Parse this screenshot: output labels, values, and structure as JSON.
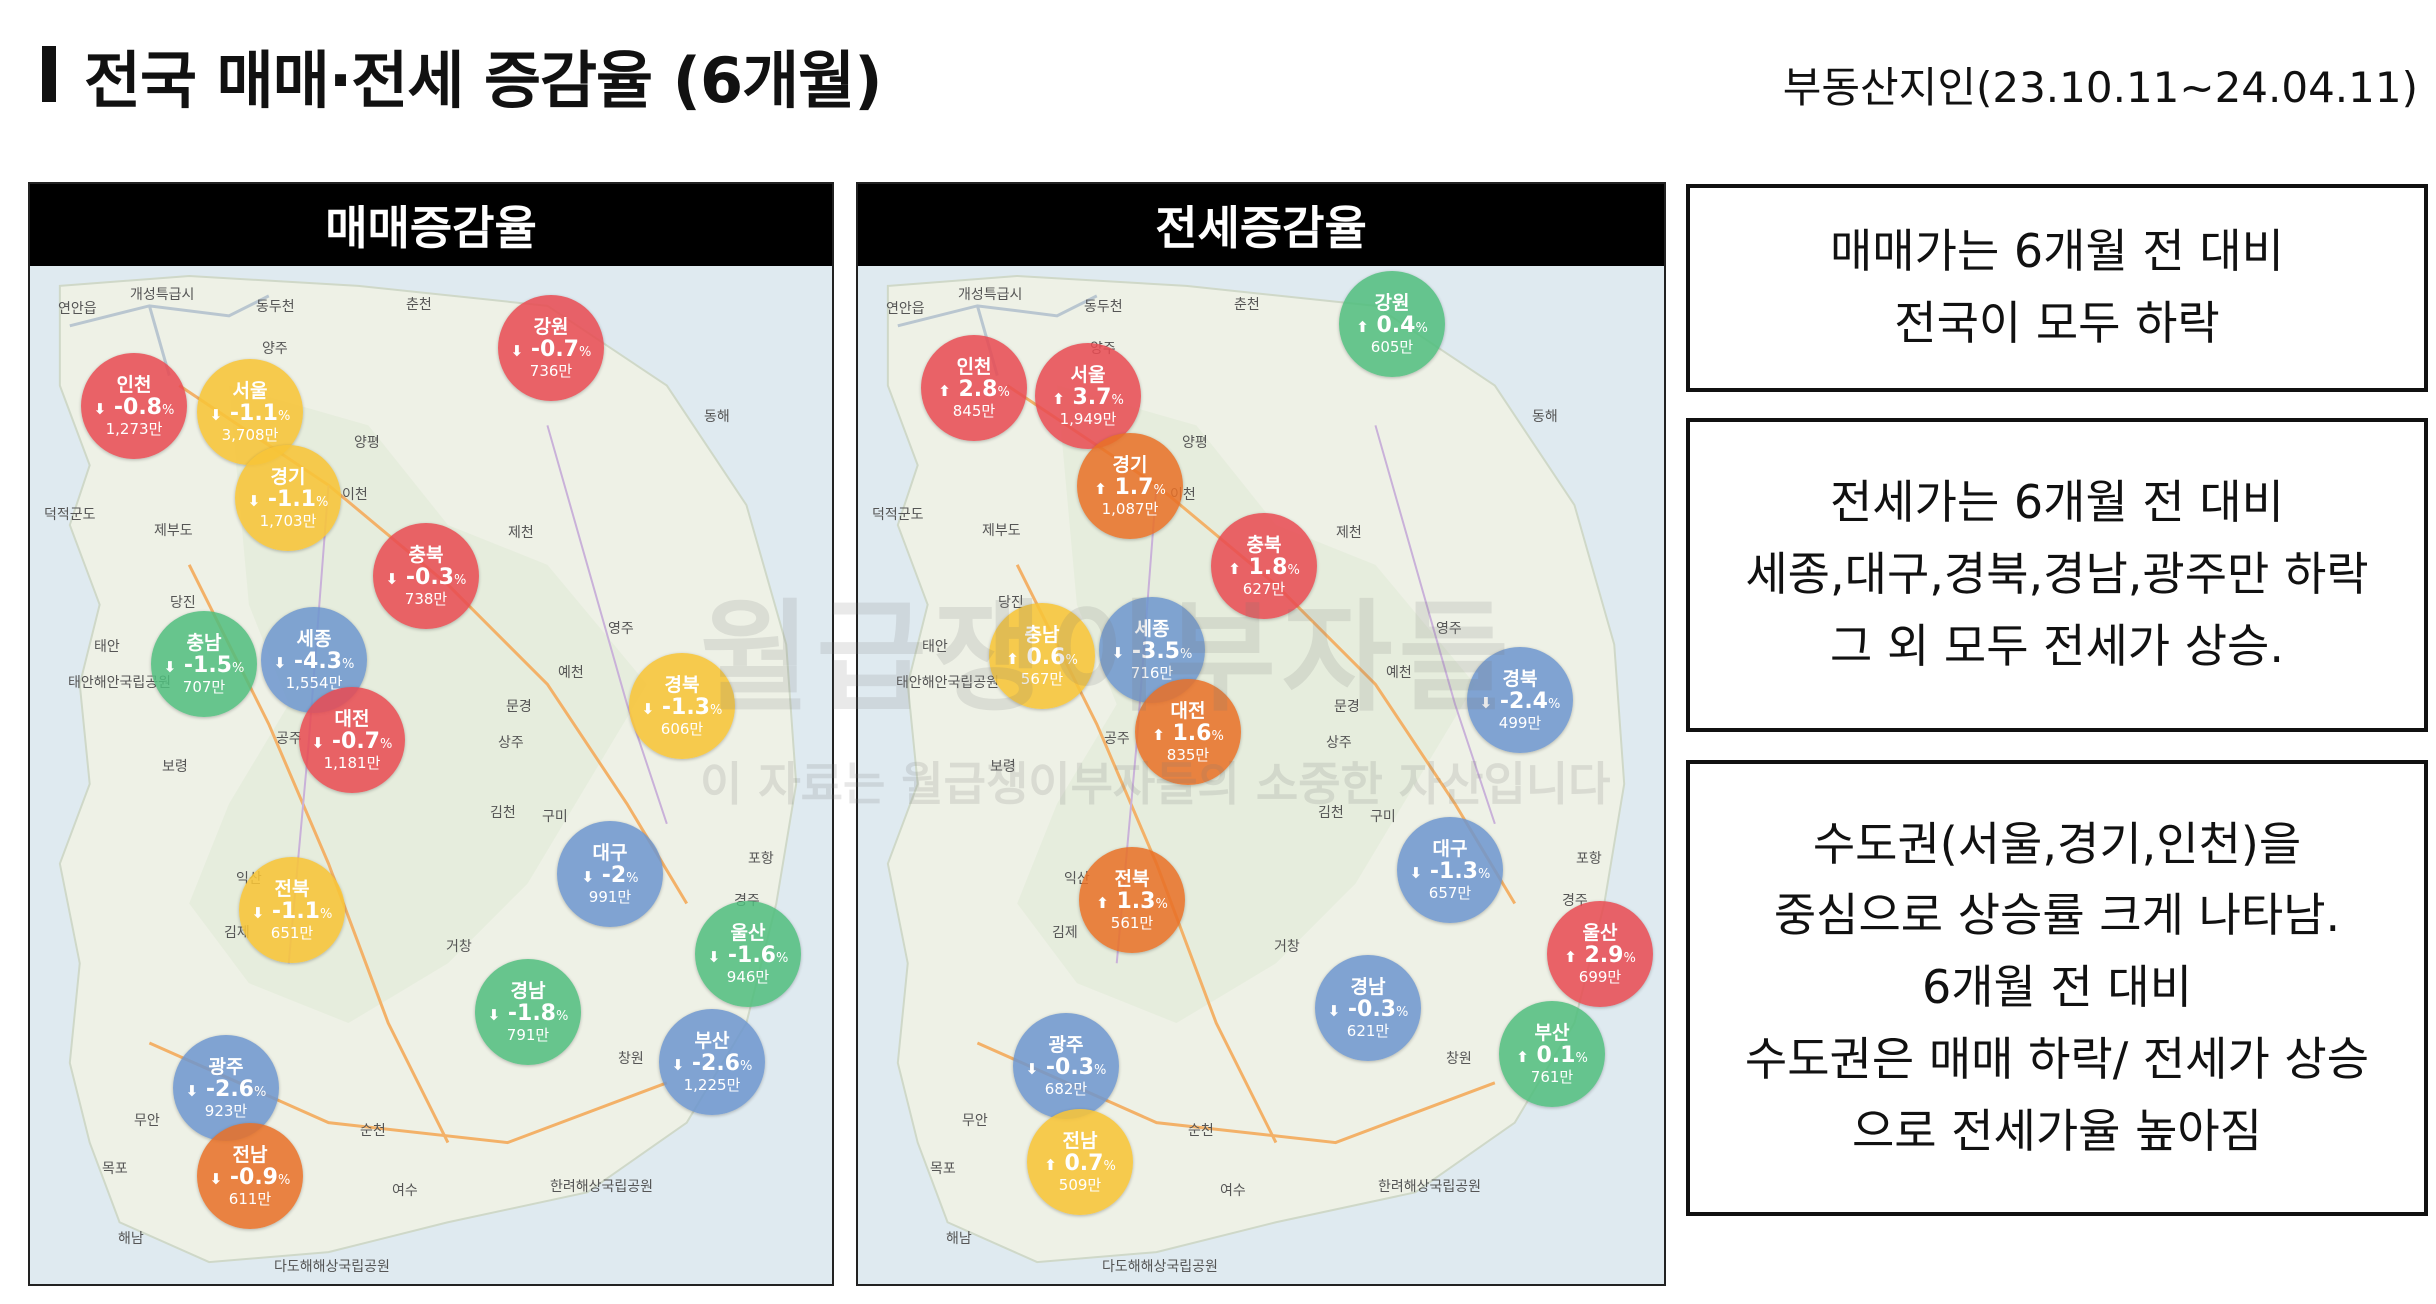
{
  "header": {
    "title": "전국 매매·전세 증감율 (6개월)",
    "source": "부동산지인(23.10.11~24.04.11)"
  },
  "colors": {
    "red": "#e84a52",
    "orange": "#e87026",
    "yellow": "#f7c438",
    "blue": "#6e96ce",
    "green": "#50be7e"
  },
  "place_names": {
    "yeonan": "연안읍",
    "kaesong": "개성특급시",
    "dongducheon": "동두천",
    "chuncheon": "춘천",
    "yangju": "양주",
    "donghae": "동해",
    "yangpyeong": "양평",
    "icheon": "이천",
    "deokjeok": "덕적군도",
    "jebu": "제부도",
    "jecheon": "제천",
    "dangjin": "당진",
    "taean": "태안",
    "taean_park": "태안해안국립공원",
    "yeongju": "영주",
    "yecheon": "예천",
    "mungyeong": "문경",
    "gongju": "공주",
    "sangju": "상주",
    "boryeong": "보령",
    "gimcheon": "김천",
    "gumi": "구미",
    "pohang": "포항",
    "iksan": "익산",
    "gimje": "김제",
    "gyeongju": "경주",
    "geochang": "거창",
    "changwon": "창원",
    "muan": "무안",
    "suncheon": "순천",
    "mokpo": "목포",
    "yeosu": "여수",
    "haenam": "해남",
    "hallyeo": "한려해상국립공원",
    "dadohae": "다도해해상국립공원",
    "ulsan_label": "울산"
  },
  "watermark": {
    "main": "월급쟁이부자들",
    "sub": "이 자료는 월급쟁이부자들의 소중한 자산입니다"
  },
  "panels": {
    "sale": {
      "header": "매매증감율",
      "regions": [
        {
          "name": "강원",
          "arrow": "⬇",
          "rate": "-0.7",
          "pct": "%",
          "price": "736만",
          "color": "red"
        },
        {
          "name": "인천",
          "arrow": "⬇",
          "rate": "-0.8",
          "pct": "%",
          "price": "1,273만",
          "color": "red"
        },
        {
          "name": "서울",
          "arrow": "⬇",
          "rate": "-1.1",
          "pct": "%",
          "price": "3,708만",
          "color": "yellow"
        },
        {
          "name": "경기",
          "arrow": "⬇",
          "rate": "-1.1",
          "pct": "%",
          "price": "1,703만",
          "color": "yellow"
        },
        {
          "name": "충북",
          "arrow": "⬇",
          "rate": "-0.3",
          "pct": "%",
          "price": "738만",
          "color": "red"
        },
        {
          "name": "충남",
          "arrow": "⬇",
          "rate": "-1.5",
          "pct": "%",
          "price": "707만",
          "color": "green"
        },
        {
          "name": "세종",
          "arrow": "⬇",
          "rate": "-4.3",
          "pct": "%",
          "price": "1,554만",
          "color": "blue"
        },
        {
          "name": "경북",
          "arrow": "⬇",
          "rate": "-1.3",
          "pct": "%",
          "price": "606만",
          "color": "yellow"
        },
        {
          "name": "대전",
          "arrow": "⬇",
          "rate": "-0.7",
          "pct": "%",
          "price": "1,181만",
          "color": "red"
        },
        {
          "name": "대구",
          "arrow": "⬇",
          "rate": "-2",
          "pct": "%",
          "price": "991만",
          "color": "blue"
        },
        {
          "name": "전북",
          "arrow": "⬇",
          "rate": "-1.1",
          "pct": "%",
          "price": "651만",
          "color": "yellow"
        },
        {
          "name": "울산",
          "arrow": "⬇",
          "rate": "-1.6",
          "pct": "%",
          "price": "946만",
          "color": "green"
        },
        {
          "name": "경남",
          "arrow": "⬇",
          "rate": "-1.8",
          "pct": "%",
          "price": "791만",
          "color": "green"
        },
        {
          "name": "광주",
          "arrow": "⬇",
          "rate": "-2.6",
          "pct": "%",
          "price": "923만",
          "color": "blue"
        },
        {
          "name": "부산",
          "arrow": "⬇",
          "rate": "-2.6",
          "pct": "%",
          "price": "1,225만",
          "color": "blue"
        },
        {
          "name": "전남",
          "arrow": "⬇",
          "rate": "-0.9",
          "pct": "%",
          "price": "611만",
          "color": "orange"
        }
      ]
    },
    "jeonse": {
      "header": "전세증감율",
      "regions": [
        {
          "name": "강원",
          "arrow": "⬆",
          "rate": "0.4",
          "pct": "%",
          "price": "605만",
          "color": "green"
        },
        {
          "name": "인천",
          "arrow": "⬆",
          "rate": "2.8",
          "pct": "%",
          "price": "845만",
          "color": "red"
        },
        {
          "name": "서울",
          "arrow": "⬆",
          "rate": "3.7",
          "pct": "%",
          "price": "1,949만",
          "color": "red"
        },
        {
          "name": "경기",
          "arrow": "⬆",
          "rate": "1.7",
          "pct": "%",
          "price": "1,087만",
          "color": "orange"
        },
        {
          "name": "충북",
          "arrow": "⬆",
          "rate": "1.8",
          "pct": "%",
          "price": "627만",
          "color": "red"
        },
        {
          "name": "충남",
          "arrow": "⬆",
          "rate": "0.6",
          "pct": "%",
          "price": "567만",
          "color": "yellow"
        },
        {
          "name": "세종",
          "arrow": "⬇",
          "rate": "-3.5",
          "pct": "%",
          "price": "716만",
          "color": "blue"
        },
        {
          "name": "경북",
          "arrow": "⬇",
          "rate": "-2.4",
          "pct": "%",
          "price": "499만",
          "color": "blue"
        },
        {
          "name": "대전",
          "arrow": "⬆",
          "rate": "1.6",
          "pct": "%",
          "price": "835만",
          "color": "orange"
        },
        {
          "name": "대구",
          "arrow": "⬇",
          "rate": "-1.3",
          "pct": "%",
          "price": "657만",
          "color": "blue"
        },
        {
          "name": "전북",
          "arrow": "⬆",
          "rate": "1.3",
          "pct": "%",
          "price": "561만",
          "color": "orange"
        },
        {
          "name": "울산",
          "arrow": "⬆",
          "rate": "2.9",
          "pct": "%",
          "price": "699만",
          "color": "red"
        },
        {
          "name": "경남",
          "arrow": "⬇",
          "rate": "-0.3",
          "pct": "%",
          "price": "621만",
          "color": "blue"
        },
        {
          "name": "부산",
          "arrow": "⬆",
          "rate": "0.1",
          "pct": "%",
          "price": "761만",
          "color": "green"
        },
        {
          "name": "광주",
          "arrow": "⬇",
          "rate": "-0.3",
          "pct": "%",
          "price": "682만",
          "color": "blue"
        },
        {
          "name": "전남",
          "arrow": "⬆",
          "rate": "0.7",
          "pct": "%",
          "price": "509만",
          "color": "yellow"
        }
      ]
    }
  },
  "notes": [
    {
      "lines": [
        "매매가는 6개월 전 대비",
        "전국이 모두 하락"
      ]
    },
    {
      "lines": [
        "전세가는 6개월 전 대비",
        "세종,대구,경북,경남,광주만 하락",
        "그 외 모두 전세가 상승."
      ]
    },
    {
      "lines": [
        "수도권(서울,경기,인천)을",
        "중심으로 상승률 크게 나타남.",
        "6개월 전 대비",
        "수도권은 매매 하락/ 전세가 상승",
        "으로 전세가율 높아짐"
      ]
    }
  ]
}
